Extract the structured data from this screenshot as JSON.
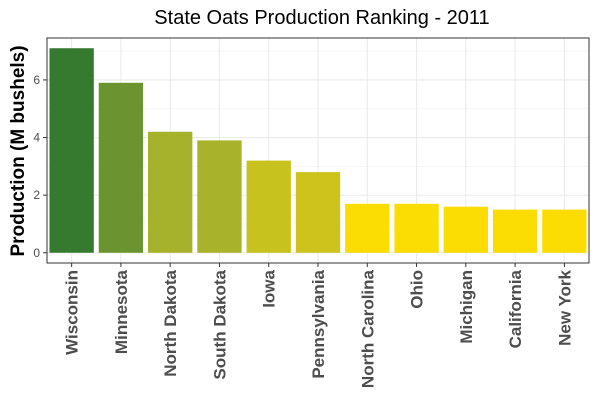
{
  "chart_data": {
    "type": "bar",
    "title": "State Oats Production Ranking - 2011",
    "xlabel": "",
    "ylabel": "Production (M bushels)",
    "categories": [
      "Wisconsin",
      "Minnesota",
      "North Dakota",
      "South Dakota",
      "Iowa",
      "Pennsylvania",
      "North Carolina",
      "Ohio",
      "Michigan",
      "California",
      "New York"
    ],
    "values": [
      7.1,
      5.9,
      4.2,
      3.9,
      3.2,
      2.8,
      1.7,
      1.7,
      1.6,
      1.5,
      1.5
    ],
    "bar_colors": [
      "#357a2e",
      "#6b9430",
      "#a6b22b",
      "#a9b22b",
      "#c8c21f",
      "#cec31d",
      "#fcdd03",
      "#fcdd03",
      "#fcdd03",
      "#fcdd03",
      "#fcdd03"
    ],
    "yticks": [
      0,
      2,
      4,
      6
    ],
    "ylim": [
      -0.355,
      7.455
    ],
    "grid": true,
    "legend": "none"
  }
}
